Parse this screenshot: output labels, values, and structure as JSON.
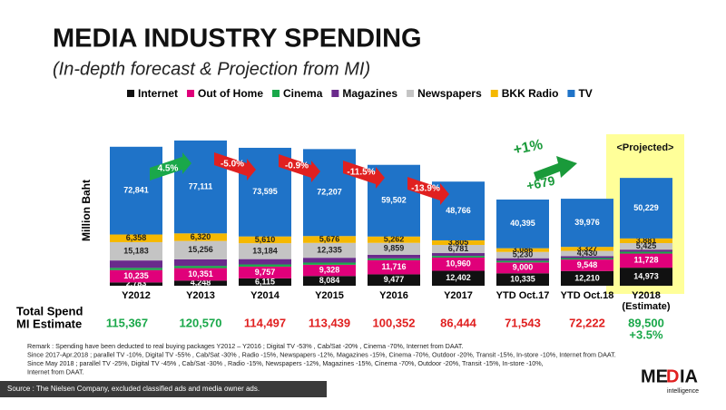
{
  "chart_data": {
    "type": "stacked_bar",
    "title": "MEDIA INDUSTRY SPENDING",
    "subtitle": "(In-depth forecast & Projection from MI)",
    "y_label": "Million Baht",
    "categories": [
      "Y2012",
      "Y2013",
      "Y2014",
      "Y2015",
      "Y2016",
      "Y2017",
      "YTD Oct.17",
      "YTD Oct.18",
      "Y2018\n(Estimate)"
    ],
    "ylim": [
      0,
      125000
    ],
    "series": [
      {
        "name": "Internet",
        "color": "#111111",
        "label_color": "#ffffff",
        "values": [
          2783,
          4248,
          6115,
          8084,
          9477,
          12402,
          10335,
          12210,
          14973
        ],
        "value_labels": [
          "2,783",
          "4,248",
          "6,115",
          "8,084",
          "9,477",
          "12,402",
          "10,335",
          "12,210",
          "14,973"
        ]
      },
      {
        "name": "Out of Home",
        "color": "#e0007a",
        "label_color": "#ffffff",
        "values": [
          10235,
          10351,
          9757,
          9328,
          11716,
          10960,
          9000,
          9548,
          11728
        ],
        "value_labels": [
          "10,235",
          "10,351",
          "9,757",
          "9,328",
          "11,716",
          "10,960",
          "9,000",
          "9,548",
          "11,728"
        ]
      },
      {
        "name": "Cinema",
        "color": "#1aa84a",
        "values": [
          1800,
          1900,
          1800,
          1800,
          1600,
          1400,
          1300,
          1200,
          1500
        ]
      },
      {
        "name": "Magazines",
        "color": "#6a2a8c",
        "values": [
          6167,
          5384,
          4436,
          4009,
          2936,
          2330,
          2197,
          1531,
          1764
        ]
      },
      {
        "name": "Newspapers",
        "color": "#c4c4c4",
        "label_color": "#222222",
        "values": [
          15183,
          15256,
          13184,
          12335,
          9859,
          6781,
          5230,
          4430,
          5425
        ],
        "value_labels": [
          "15,183",
          "15,256",
          "13,184",
          "12,335",
          "9,859",
          "6,781",
          "5,230",
          "4,430",
          "5,425"
        ]
      },
      {
        "name": "BKK Radio",
        "color": "#f5b800",
        "label_color": "#222222",
        "values": [
          6358,
          6320,
          5610,
          5676,
          5262,
          3805,
          3086,
          3327,
          3881
        ],
        "value_labels": [
          "6,358",
          "6,320",
          "5,610",
          "5,676",
          "5,262",
          "3,805",
          "3,086",
          "3,327",
          "3,881"
        ]
      },
      {
        "name": "TV",
        "color": "#1f73c8",
        "label_color": "#ffffff",
        "values": [
          72841,
          77111,
          73595,
          72207,
          59502,
          48766,
          40395,
          39976,
          50229
        ],
        "value_labels": [
          "72,841",
          "77,111",
          "73,595",
          "72,207",
          "59,502",
          "48,766",
          "40,395",
          "39,976",
          "50,229"
        ]
      }
    ],
    "growth_labels": [
      "4.5%",
      "-5.0%",
      "-0.9%",
      "-11.5%",
      "-13.9%"
    ],
    "growth_colors": [
      "#1aa84a",
      "#e02020",
      "#e02020",
      "#e02020",
      "#e02020"
    ],
    "ytd_change": [
      "+1%",
      "+679"
    ],
    "projected_label": "<Projected>",
    "totals_title": [
      "Total Spend",
      "MI Estimate"
    ],
    "totals": [
      "115,367",
      "120,570",
      "114,497",
      "113,439",
      "100,352",
      "86,444",
      "71,543",
      "72,222",
      "89,500"
    ],
    "total_colors": [
      "#1aa84a",
      "#1aa84a",
      "#e02020",
      "#e02020",
      "#e02020",
      "#e02020",
      "#e02020",
      "#e02020",
      "#1aa84a"
    ],
    "estimate_growth": "+3.5%",
    "remarks": [
      "Remark : Spending have been deducted  to real buying  packages  Y2012 – Y2016 ; Digital TV  -53% , Cab/Sat -20% , Cinema  -70%, Internet from DAAT.",
      "Since 2017-Apr.2018 ; parallel TV -10%, Digital TV  -55% , Cab/Sat  -30% , Radio  -15%, Newspapers  -12%, Magazines  -15%, Cinema  -70%, Outdoor  -20%, Transit  -15%, In-store  -10%, Internet from DAAT.",
      "Since May 2018 ; parallel TV  -25%, Digital TV  -45% , Cab/Sat  -30% , Radio  -15%, Newspapers  -12%, Magazines  -15%, Cinema  -70%, Outdoor  -20%, Transit  -15%, In-store  -10%,",
      "Internet from DAAT."
    ],
    "source": "Source :  The Nielsen Company, excluded  classified  ads  and  media owner  ads.",
    "logo": [
      "ME",
      "D",
      "IA",
      "intelligence"
    ]
  }
}
